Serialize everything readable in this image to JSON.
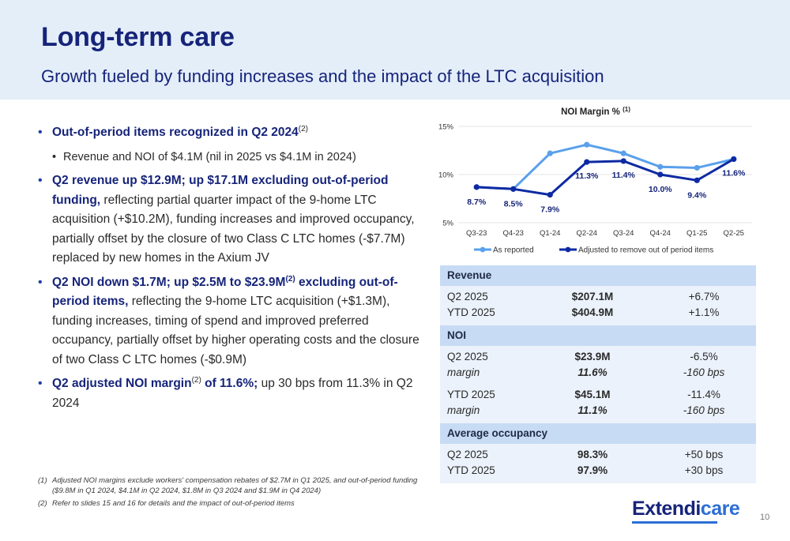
{
  "header": {
    "title": "Long-term care",
    "subtitle": "Growth fueled by funding increases and the impact of the LTC acquisition"
  },
  "bullets": {
    "b1_hl": "Out-of-period items recognized in Q2 2024",
    "b1_sup": "(2)",
    "b1_sub": "Revenue and NOI of $4.1M (nil in 2025 vs $4.1M in 2024)",
    "b2_hl": "Q2 revenue up $12.9M; up $17.1M excluding out-of-period funding,",
    "b2_text": " reflecting partial quarter impact of the 9-home LTC acquisition (+$10.2M), funding increases and improved occupancy, partially offset by the closure of two Class C LTC homes (-$7.7M) replaced by new homes in the Axium JV",
    "b3_hl1": "Q2 NOI down $1.7M; up $2.5M to $23.9M",
    "b3_sup": "(2)",
    "b3_hl2": " excluding out-of-period items,",
    "b3_text": " reflecting the 9-home LTC acquisition (+$1.3M), funding increases, timing of spend and improved preferred occupancy, partially offset by higher operating costs and the closure of two Class C LTC homes (-$0.9M)",
    "b4_hl1": "Q2 adjusted NOI margin",
    "b4_sup": "(2)",
    "b4_hl2": " of 11.6%;",
    "b4_text": " up 30 bps from 11.3% in Q2 2024"
  },
  "chart_data": {
    "type": "line",
    "title": "NOI Margin %",
    "title_sup": "(1)",
    "categories": [
      "Q3-23",
      "Q4-23",
      "Q1-24",
      "Q2-24",
      "Q3-24",
      "Q4-24",
      "Q1-25",
      "Q2-25"
    ],
    "y_ticks": [
      "15%",
      "10%",
      "5%"
    ],
    "ylim": [
      5,
      15
    ],
    "series": [
      {
        "name": "As reported",
        "color": "#5aa0ec",
        "values": [
          8.7,
          8.5,
          12.2,
          13.1,
          12.2,
          10.8,
          10.7,
          11.6
        ]
      },
      {
        "name": "Adjusted to remove out of period items",
        "color": "#0d2aa3",
        "values": [
          8.7,
          8.5,
          7.9,
          11.3,
          11.4,
          10.0,
          9.4,
          11.6
        ]
      }
    ],
    "data_labels": [
      "8.7%",
      "8.5%",
      "7.9%",
      "11.3%",
      "11.4%",
      "10.0%",
      "9.4%",
      "11.6%"
    ],
    "legend_position": "bottom"
  },
  "table": {
    "revenue": {
      "label": "Revenue",
      "r1": [
        "Q2 2025",
        "$207.1M",
        "+6.7%"
      ],
      "r2": [
        "YTD 2025",
        "$404.9M",
        "+1.1%"
      ]
    },
    "noi": {
      "label": "NOI",
      "r1": [
        "Q2 2025",
        "$23.9M",
        "-6.5%"
      ],
      "r2": [
        "margin",
        "11.6%",
        "-160 bps"
      ],
      "r3": [
        "YTD 2025",
        "$45.1M",
        "-11.4%"
      ],
      "r4": [
        "margin",
        "11.1%",
        "-160 bps"
      ]
    },
    "occupancy": {
      "label": "Average occupancy",
      "r1": [
        "Q2 2025",
        "98.3%",
        "+50 bps"
      ],
      "r2": [
        "YTD 2025",
        "97.9%",
        "+30 bps"
      ]
    }
  },
  "footnotes": {
    "f1_num": "(1)",
    "f1_text": "Adjusted NOI margins exclude workers' compensation rebates of $2.7M in Q1 2025, and out-of-period funding ($9.8M in Q1 2024, $4.1M in Q2 2024, $1.8M in Q3 2024 and $1.9M in Q4 2024)",
    "f2_num": "(2)",
    "f2_text": "Refer to slides 15 and 16 for details and the impact of out-of-period items"
  },
  "logo": {
    "part1": "Extendi",
    "part2": "care"
  },
  "page_number": "10"
}
